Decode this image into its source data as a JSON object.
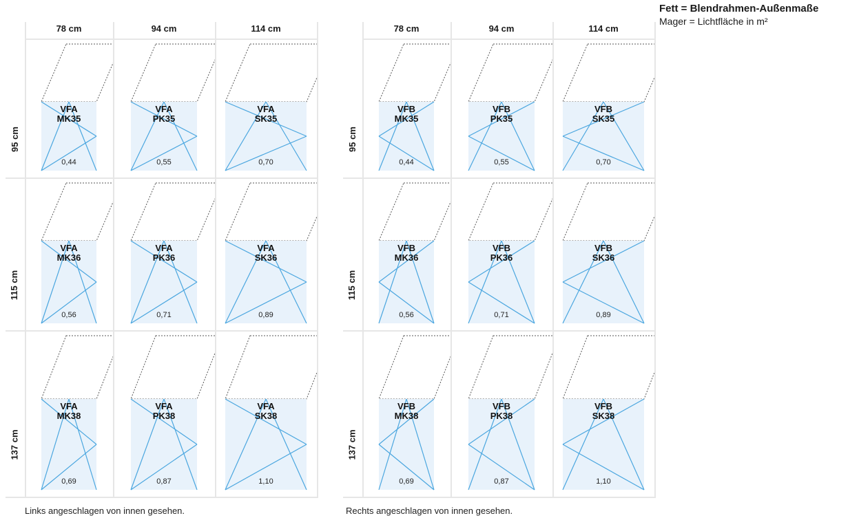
{
  "legend": {
    "bold": "Fett = Blendrahmen-Außenmaße",
    "light": "Mager = Lichtfläche in m²"
  },
  "colors": {
    "glass": "#e8f2fb",
    "opening_lines": "#4aa6df",
    "dotted": "#555555",
    "grid": "#e6e6e6"
  },
  "columns": [
    "78 cm",
    "94 cm",
    "114 cm"
  ],
  "rows": [
    "95 cm",
    "115 cm",
    "137 cm"
  ],
  "left": {
    "caption": "Links angeschlagen von innen gesehen.",
    "prefix": "VFA",
    "cells": [
      [
        {
          "model": "VFA",
          "code": "MK35",
          "area": "0,44"
        },
        {
          "model": "VFA",
          "code": "PK35",
          "area": "0,55"
        },
        {
          "model": "VFA",
          "code": "SK35",
          "area": "0,70"
        }
      ],
      [
        {
          "model": "VFA",
          "code": "MK36",
          "area": "0,56"
        },
        {
          "model": "VFA",
          "code": "PK36",
          "area": "0,71"
        },
        {
          "model": "VFA",
          "code": "SK36",
          "area": "0,89"
        }
      ],
      [
        {
          "model": "VFA",
          "code": "MK38",
          "area": "0,69"
        },
        {
          "model": "VFA",
          "code": "PK38",
          "area": "0,87"
        },
        {
          "model": "VFA",
          "code": "SK38",
          "area": "1,10"
        }
      ]
    ]
  },
  "right": {
    "caption": "Rechts angeschlagen von innen gesehen.",
    "prefix": "VFB",
    "cells": [
      [
        {
          "model": "VFB",
          "code": "MK35",
          "area": "0,44"
        },
        {
          "model": "VFB",
          "code": "PK35",
          "area": "0,55"
        },
        {
          "model": "VFB",
          "code": "SK35",
          "area": "0,70"
        }
      ],
      [
        {
          "model": "VFB",
          "code": "MK36",
          "area": "0,56"
        },
        {
          "model": "VFB",
          "code": "PK36",
          "area": "0,71"
        },
        {
          "model": "VFB",
          "code": "SK36",
          "area": "0,89"
        }
      ],
      [
        {
          "model": "VFB",
          "code": "MK38",
          "area": "0,69"
        },
        {
          "model": "VFB",
          "code": "PK38",
          "area": "0,87"
        },
        {
          "model": "VFB",
          "code": "SK38",
          "area": "1,10"
        }
      ]
    ]
  }
}
